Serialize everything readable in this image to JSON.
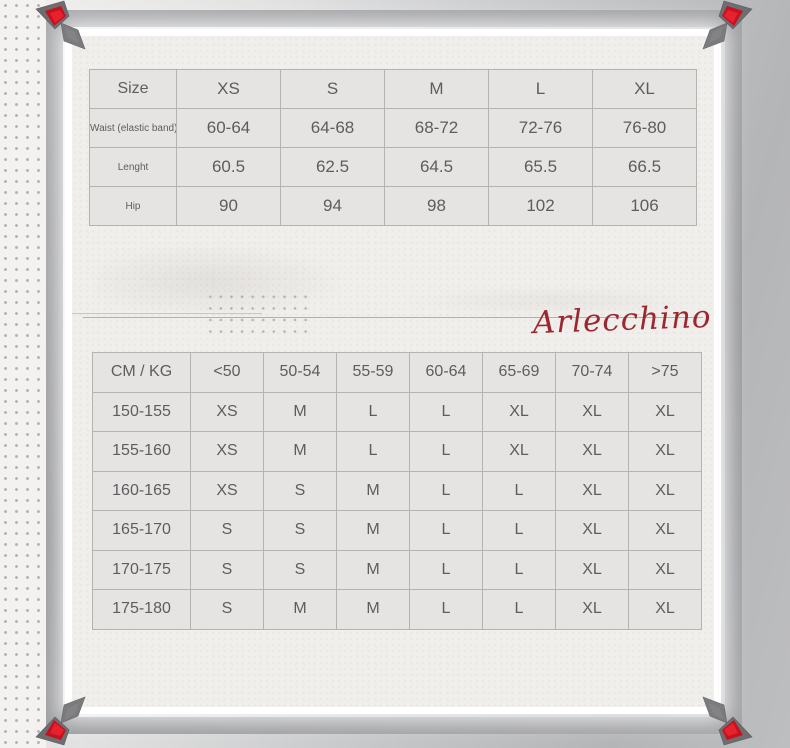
{
  "chart_data": [
    {
      "type": "table",
      "columns": [
        "Size",
        "XS",
        "S",
        "M",
        "L",
        "XL"
      ],
      "rows": [
        [
          "Waist (elastic band)",
          "60-64",
          "64-68",
          "68-72",
          "72-76",
          "76-80"
        ],
        [
          "Lenght",
          "60.5",
          "62.5",
          "64.5",
          "65.5",
          "66.5"
        ],
        [
          "Hip",
          "90",
          "94",
          "98",
          "102",
          "106"
        ]
      ]
    },
    {
      "type": "table",
      "columns": [
        "CM / KG",
        "<50",
        "50-54",
        "55-59",
        "60-64",
        "65-69",
        "70-74",
        ">75"
      ],
      "rows": [
        [
          "150-155",
          "XS",
          "M",
          "L",
          "L",
          "XL",
          "XL",
          "XL"
        ],
        [
          "155-160",
          "XS",
          "M",
          "L",
          "L",
          "XL",
          "XL",
          "XL"
        ],
        [
          "160-165",
          "XS",
          "S",
          "M",
          "L",
          "L",
          "XL",
          "XL"
        ],
        [
          "165-170",
          "S",
          "S",
          "M",
          "L",
          "L",
          "XL",
          "XL"
        ],
        [
          "170-175",
          "S",
          "S",
          "M",
          "L",
          "L",
          "XL",
          "XL"
        ],
        [
          "175-180",
          "S",
          "M",
          "M",
          "L",
          "L",
          "XL",
          "XL"
        ]
      ]
    }
  ],
  "decor": {
    "script_text": "Arlecchino",
    "script_color": "#9c2730",
    "gem_color": "#c8101e",
    "frame_color": "#9c9da0",
    "cell_color": "#e6e4e2",
    "panel_color": "#f1efec"
  }
}
